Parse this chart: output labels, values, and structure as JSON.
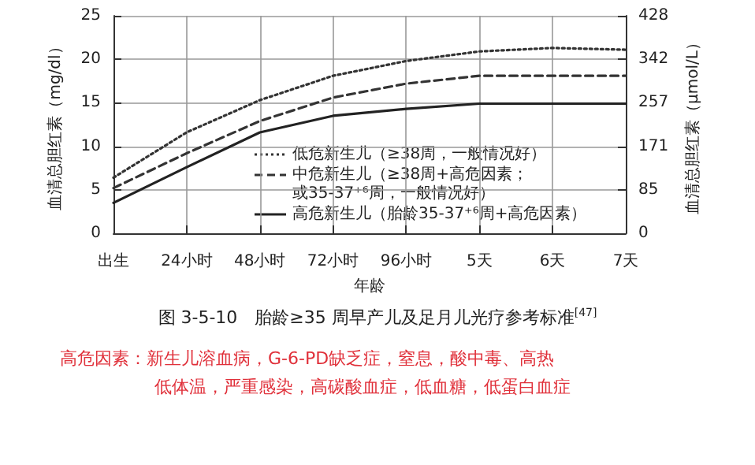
{
  "chart_data": {
    "type": "line",
    "title": "图 3-5-10　胎龄≥35 周早产儿及足月儿光疗参考标准$^{[47]}$",
    "xlabel": "年龄",
    "ylabel": "血清总胆红素（mg/dl）",
    "y2label": "血清总胆红素（μmol/L）",
    "categories": [
      "出生",
      "24小时",
      "48小时",
      "72小时",
      "96小时",
      "5天",
      "6天",
      "7天"
    ],
    "ylim": [
      0,
      25
    ],
    "yticks": [
      0,
      5,
      10,
      15,
      20,
      25
    ],
    "y2lim": [
      0,
      428
    ],
    "y2ticks": [
      0,
      85,
      171,
      257,
      342,
      428
    ],
    "series": [
      {
        "name": "低危新生儿（≥38周，一般情况好）",
        "color": "#333333",
        "line_style": "dotted",
        "values": [
          6.4,
          11.6,
          15.3,
          18.1,
          19.8,
          20.9,
          21.3,
          21.1
        ]
      },
      {
        "name": "中危新生儿（≥38周+高危因素；或35-37⁺⁶周，一般情况好）",
        "color": "#333333",
        "line_style": "dashed",
        "values": [
          5.2,
          9.2,
          12.9,
          15.6,
          17.2,
          18.1,
          18.1,
          18.1
        ]
      },
      {
        "name": "高危新生儿（胎龄35-37⁺⁶周+高危因素）",
        "color": "#222222",
        "line_style": "solid",
        "values": [
          3.5,
          7.6,
          11.6,
          13.5,
          14.3,
          14.9,
          14.9,
          14.9
        ]
      }
    ],
    "grid": true,
    "legend": "bottom right",
    "marker": "none",
    "annotations": [
      "高危因素：新生儿溶血病，G-6-PD缺乏症，窒息，酸中毒、高热",
      "低体温，严重感染，高碳酸血症，低血糖，低蛋白血症"
    ]
  }
}
